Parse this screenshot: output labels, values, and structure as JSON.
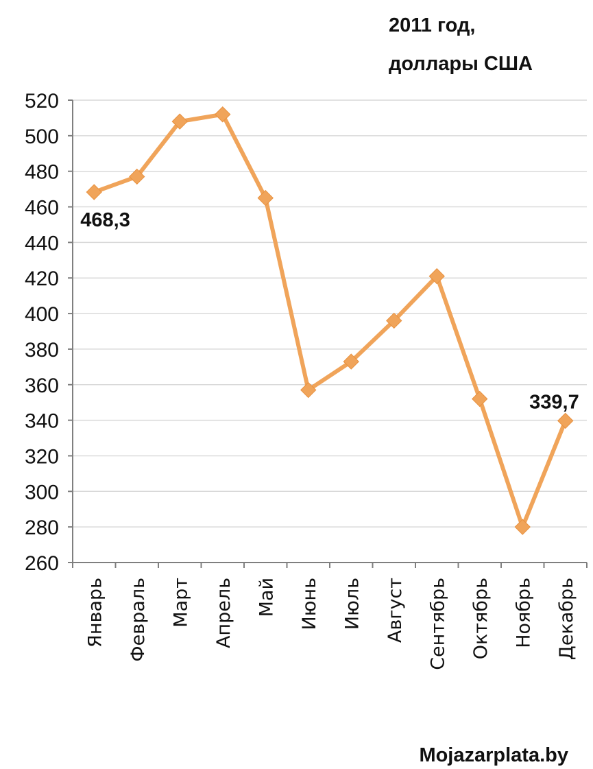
{
  "chart_data": {
    "type": "line",
    "title": "2011 год,",
    "subtitle": "доллары США",
    "xlabel": "",
    "ylabel": "",
    "categories": [
      "Январь",
      "Февраль",
      "Март",
      "Апрель",
      "Май",
      "Июнь",
      "Июль",
      "Август",
      "Сентябрь",
      "Октябрь",
      "Ноябрь",
      "Декабрь"
    ],
    "series": [
      {
        "values": [
          468.3,
          477,
          508,
          512,
          465,
          357,
          373,
          396,
          421,
          352,
          280,
          339.7
        ]
      }
    ],
    "y_ticks": [
      "520",
      "500",
      "480",
      "460",
      "440",
      "420",
      "400",
      "380",
      "360",
      "340",
      "320",
      "300",
      "280",
      "260"
    ],
    "ylim": [
      260,
      520
    ],
    "grid": true,
    "line_color": "#f0a45a",
    "marker": "diamond",
    "data_labels": [
      {
        "index": 0,
        "text": "468,3"
      },
      {
        "index": 11,
        "text": "339,7"
      }
    ]
  },
  "source": "Mojazarplata.by"
}
